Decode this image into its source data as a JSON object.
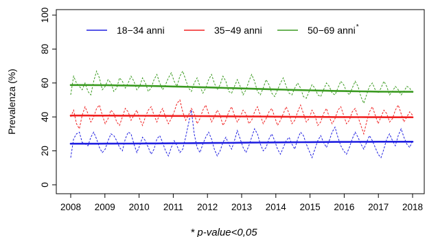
{
  "chart_data": {
    "type": "line",
    "title": "",
    "xlabel": "",
    "ylabel": "Prevalenza (%)",
    "xlim": [
      2008,
      2018
    ],
    "ylim": [
      0,
      100
    ],
    "x_ticks": [
      "2008",
      "2009",
      "2010",
      "2011",
      "2012",
      "2013",
      "2014",
      "2015",
      "2016",
      "2017",
      "2018"
    ],
    "y_ticks": [
      "0",
      "20",
      "40",
      "60",
      "80",
      "100"
    ],
    "grid": false,
    "legend_position": "top",
    "footnote": "* p-value<0,05",
    "series": [
      {
        "name": "18−34 anni",
        "marker": "",
        "color": "#1f1fe0",
        "monthly_x_start": 2008,
        "monthly_values": [
          16,
          27,
          30,
          31,
          25,
          24,
          23,
          28,
          31,
          27,
          22,
          19,
          21,
          26,
          30,
          29,
          26,
          22,
          20,
          27,
          31,
          30,
          24,
          19,
          23,
          28,
          26,
          22,
          18,
          21,
          27,
          29,
          25,
          20,
          17,
          22,
          26,
          23,
          19,
          21,
          28,
          36,
          44,
          30,
          22,
          19,
          24,
          28,
          31,
          27,
          21,
          17,
          20,
          25,
          28,
          24,
          21,
          26,
          32,
          27,
          22,
          19,
          23,
          28,
          33,
          30,
          24,
          20,
          22,
          27,
          30,
          26,
          21,
          18,
          22,
          26,
          28,
          24,
          21,
          27,
          31,
          29,
          24,
          20,
          16,
          21,
          26,
          29,
          25,
          22,
          26,
          31,
          34,
          28,
          23,
          20,
          18,
          22,
          27,
          31,
          28,
          24,
          21,
          25,
          29,
          26,
          22,
          18,
          16,
          21,
          27,
          30,
          26,
          23,
          29,
          33,
          28,
          24,
          22,
          26
        ],
        "trend_start": 24.2,
        "trend_end": 25.4
      },
      {
        "name": "35−49 anni",
        "marker": "",
        "color": "#f02020",
        "monthly_x_start": 2008,
        "monthly_values": [
          40,
          44,
          36,
          33,
          41,
          46,
          42,
          37,
          40,
          45,
          47,
          41,
          36,
          39,
          44,
          42,
          37,
          35,
          40,
          45,
          43,
          38,
          41,
          44,
          39,
          35,
          40,
          44,
          46,
          41,
          37,
          42,
          45,
          40,
          36,
          39,
          43,
          48,
          50,
          43,
          38,
          41,
          45,
          42,
          36,
          39,
          44,
          47,
          42,
          37,
          40,
          44,
          41,
          35,
          38,
          43,
          46,
          41,
          37,
          40,
          44,
          42,
          36,
          38,
          43,
          46,
          41,
          36,
          39,
          43,
          45,
          40,
          35,
          38,
          42,
          46,
          42,
          36,
          38,
          43,
          47,
          42,
          37,
          39,
          44,
          41,
          35,
          37,
          42,
          45,
          40,
          36,
          39,
          44,
          46,
          41,
          36,
          38,
          43,
          45,
          40,
          35,
          30,
          37,
          43,
          46,
          41,
          36,
          40,
          44,
          42,
          37,
          39,
          44,
          47,
          42,
          37,
          40,
          43,
          41
        ],
        "trend_start": 40.8,
        "trend_end": 39.8
      },
      {
        "name": "50−69 anni",
        "marker": "*",
        "color": "#3a9a20",
        "monthly_x_start": 2008,
        "monthly_values": [
          53,
          64,
          60,
          58,
          56,
          60,
          55,
          53,
          61,
          67,
          63,
          56,
          58,
          62,
          60,
          55,
          57,
          63,
          61,
          57,
          60,
          64,
          61,
          56,
          58,
          63,
          60,
          55,
          57,
          62,
          65,
          60,
          56,
          59,
          63,
          66,
          61,
          58,
          64,
          67,
          62,
          57,
          55,
          60,
          63,
          58,
          54,
          57,
          62,
          65,
          60,
          56,
          59,
          64,
          61,
          55,
          54,
          58,
          62,
          58,
          53,
          56,
          61,
          65,
          61,
          55,
          53,
          57,
          62,
          59,
          54,
          52,
          56,
          60,
          63,
          58,
          54,
          53,
          57,
          60,
          57,
          52,
          51,
          55,
          59,
          57,
          53,
          52,
          56,
          60,
          58,
          54,
          53,
          57,
          61,
          59,
          55,
          53,
          57,
          61,
          58,
          52,
          48,
          53,
          58,
          60,
          56,
          54,
          57,
          61,
          58,
          53,
          55,
          58,
          56,
          53,
          55,
          58,
          57,
          54
        ],
        "trend_start": 58.8,
        "trend_end": 54.8
      }
    ]
  }
}
